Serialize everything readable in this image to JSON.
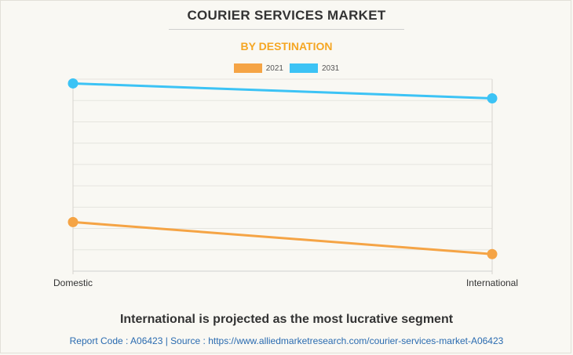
{
  "header": {
    "title": "COURIER SERVICES MARKET",
    "subtitle": "BY DESTINATION"
  },
  "legend": [
    {
      "label": "2021",
      "color": "#f5a445"
    },
    {
      "label": "2031",
      "color": "#3cc3f5"
    }
  ],
  "chart_data": {
    "type": "line",
    "categories": [
      "Domestic",
      "International"
    ],
    "series": [
      {
        "name": "2021",
        "color": "#f5a445",
        "values": [
          2.3,
          0.8
        ]
      },
      {
        "name": "2031",
        "color": "#3cc3f5",
        "values": [
          8.8,
          8.1
        ]
      }
    ],
    "ylim": [
      0,
      9
    ],
    "grid": true,
    "legend_position": "top-center"
  },
  "footer": {
    "headline": "International is projected as the most lucrative segment",
    "source": "Report Code : A06423  |  Source : https://www.alliedmarketresearch.com/courier-services-market-A06423"
  }
}
